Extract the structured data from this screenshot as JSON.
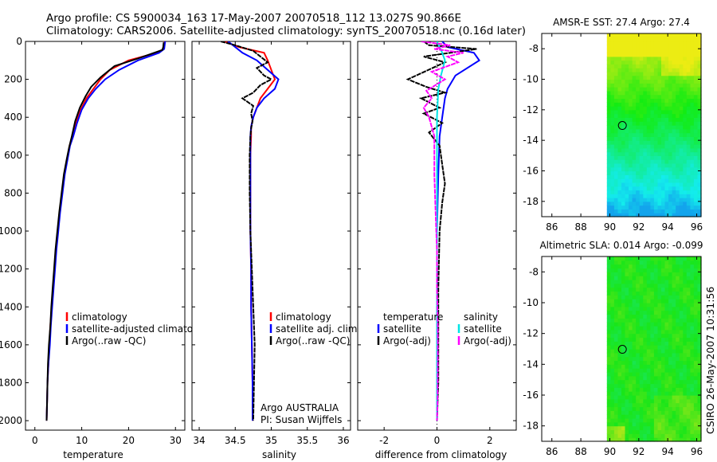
{
  "header": {
    "title_line1": "Argo profile: CS 5900034_163 17-May-2007 20070518_112 13.027S 90.866E",
    "title_line2": "Climatology: CARS2006. Satellite-adjusted climatology: synTS_20070518.nc (0.16d later)"
  },
  "footer": {
    "stamp": "CSIRO 26-May-2007 10:31:56"
  },
  "colors": {
    "climatology": "#ff0000",
    "satellite": "#0000ff",
    "argo": "#000000",
    "sat_diff_sal": "#00e5e5",
    "argo_diff_sal": "#ff00ff"
  },
  "chart_data": [
    {
      "id": "temperature",
      "type": "line",
      "xlabel": "temperature",
      "ylabel": "",
      "xlim": [
        -2,
        32
      ],
      "ylim": [
        0,
        2050
      ],
      "xticks": [
        "0",
        "10",
        "20",
        "30"
      ],
      "yticks": [
        "0",
        "200",
        "400",
        "600",
        "800",
        "1000",
        "1200",
        "1400",
        "1600",
        "1800",
        "2000"
      ],
      "legend_position": "bottom-right",
      "legend": [
        "climatology",
        "satellite-adjusted climatology",
        "Argo(..raw -QC)"
      ],
      "series": [
        {
          "name": "climatology",
          "color": "#ff0000",
          "points": [
            [
              27.7,
              0
            ],
            [
              27.5,
              40
            ],
            [
              26,
              60
            ],
            [
              20,
              100
            ],
            [
              16,
              150
            ],
            [
              14,
              200
            ],
            [
              12.5,
              250
            ],
            [
              11,
              300
            ],
            [
              9.8,
              360
            ],
            [
              8.8,
              430
            ],
            [
              8.0,
              500
            ],
            [
              7.4,
              550
            ],
            [
              6.9,
              620
            ],
            [
              6.3,
              700
            ],
            [
              5.8,
              800
            ],
            [
              5.3,
              900
            ],
            [
              4.9,
              1000
            ],
            [
              4.5,
              1100
            ],
            [
              4.2,
              1200
            ],
            [
              3.9,
              1300
            ],
            [
              3.6,
              1400
            ],
            [
              3.3,
              1500
            ],
            [
              3.1,
              1600
            ],
            [
              2.9,
              1700
            ],
            [
              2.7,
              1800
            ],
            [
              2.6,
              1900
            ],
            [
              2.5,
              2000
            ]
          ]
        },
        {
          "name": "satellite-adjusted climatology",
          "color": "#0000ff",
          "points": [
            [
              27.8,
              0
            ],
            [
              27.6,
              40
            ],
            [
              26.5,
              60
            ],
            [
              22,
              100
            ],
            [
              18,
              150
            ],
            [
              15,
              200
            ],
            [
              13,
              250
            ],
            [
              11.4,
              300
            ],
            [
              10.0,
              360
            ],
            [
              9.0,
              430
            ],
            [
              8.2,
              500
            ],
            [
              7.5,
              550
            ],
            [
              7.0,
              620
            ],
            [
              6.4,
              700
            ],
            [
              5.9,
              800
            ],
            [
              5.4,
              900
            ],
            [
              5.0,
              1000
            ],
            [
              4.6,
              1100
            ],
            [
              4.3,
              1200
            ],
            [
              4.0,
              1300
            ],
            [
              3.7,
              1400
            ],
            [
              3.4,
              1500
            ],
            [
              3.2,
              1600
            ],
            [
              2.9,
              1700
            ],
            [
              2.7,
              1800
            ],
            [
              2.6,
              1900
            ],
            [
              2.5,
              2000
            ]
          ]
        },
        {
          "name": "Argo(..raw -QC)",
          "color": "#000000",
          "points": [
            [
              27.5,
              5
            ],
            [
              27.4,
              30
            ],
            [
              27.2,
              45
            ],
            [
              22,
              90
            ],
            [
              17,
              130
            ],
            [
              14,
              190
            ],
            [
              12,
              240
            ],
            [
              10.8,
              290
            ],
            [
              9.6,
              350
            ],
            [
              8.6,
              420
            ],
            [
              7.9,
              500
            ],
            [
              7.3,
              560
            ],
            [
              6.8,
              620
            ],
            [
              6.2,
              700
            ],
            [
              5.7,
              800
            ],
            [
              5.2,
              900
            ],
            [
              4.8,
              1000
            ],
            [
              4.4,
              1100
            ],
            [
              4.1,
              1200
            ],
            [
              3.8,
              1300
            ],
            [
              3.5,
              1400
            ],
            [
              3.3,
              1500
            ],
            [
              3.0,
              1600
            ],
            [
              2.8,
              1700
            ],
            [
              2.7,
              1800
            ],
            [
              2.6,
              1900
            ],
            [
              2.5,
              2000
            ]
          ]
        }
      ]
    },
    {
      "id": "salinity",
      "type": "line",
      "xlabel": "salinity",
      "ylabel": "",
      "xlim": [
        33.9,
        36.1
      ],
      "ylim": [
        0,
        2050
      ],
      "xticks": [
        "34",
        "34.5",
        "35",
        "35.5",
        "36"
      ],
      "legend_position": "bottom-right",
      "legend": [
        "climatology",
        "satellite adj. clim.",
        "Argo(..raw -QC)"
      ],
      "annotation": [
        "Argo AUSTRALIA",
        "PI: Susan Wijffels"
      ],
      "series": [
        {
          "name": "climatology",
          "color": "#ff0000",
          "points": [
            [
              34.35,
              0
            ],
            [
              34.55,
              30
            ],
            [
              34.9,
              60
            ],
            [
              34.95,
              100
            ],
            [
              35.0,
              150
            ],
            [
              35.05,
              200
            ],
            [
              34.95,
              250
            ],
            [
              34.85,
              300
            ],
            [
              34.8,
              350
            ],
            [
              34.75,
              400
            ],
            [
              34.72,
              450
            ],
            [
              34.72,
              500
            ],
            [
              34.71,
              600
            ],
            [
              34.71,
              800
            ],
            [
              34.71,
              1000
            ],
            [
              34.72,
              1200
            ],
            [
              34.72,
              1400
            ],
            [
              34.73,
              1600
            ],
            [
              34.74,
              1800
            ],
            [
              34.74,
              2000
            ]
          ]
        },
        {
          "name": "satellite adj. clim.",
          "color": "#0000ff",
          "points": [
            [
              34.4,
              0
            ],
            [
              34.5,
              30
            ],
            [
              34.6,
              60
            ],
            [
              34.8,
              100
            ],
            [
              34.95,
              150
            ],
            [
              35.1,
              200
            ],
            [
              35.05,
              250
            ],
            [
              34.9,
              300
            ],
            [
              34.8,
              350
            ],
            [
              34.75,
              400
            ],
            [
              34.72,
              450
            ],
            [
              34.71,
              500
            ],
            [
              34.71,
              600
            ],
            [
              34.71,
              800
            ],
            [
              34.71,
              1000
            ],
            [
              34.72,
              1200
            ],
            [
              34.72,
              1400
            ],
            [
              34.73,
              1600
            ],
            [
              34.74,
              1800
            ],
            [
              34.74,
              2000
            ]
          ]
        },
        {
          "name": "Argo(..raw -QC)",
          "color": "#000000",
          "points": [
            [
              34.3,
              0
            ],
            [
              34.5,
              20
            ],
            [
              34.75,
              50
            ],
            [
              34.95,
              110
            ],
            [
              34.8,
              140
            ],
            [
              34.9,
              180
            ],
            [
              35.0,
              200
            ],
            [
              34.85,
              230
            ],
            [
              34.75,
              270
            ],
            [
              34.6,
              300
            ],
            [
              34.75,
              340
            ],
            [
              34.72,
              380
            ],
            [
              34.74,
              420
            ],
            [
              34.72,
              460
            ],
            [
              34.71,
              500
            ],
            [
              34.7,
              600
            ],
            [
              34.7,
              800
            ],
            [
              34.71,
              1000
            ],
            [
              34.73,
              1200
            ],
            [
              34.75,
              1400
            ],
            [
              34.77,
              1600
            ],
            [
              34.76,
              1800
            ],
            [
              34.75,
              2000
            ]
          ]
        }
      ]
    },
    {
      "id": "difference",
      "type": "line",
      "xlabel": "difference from climatology",
      "ylabel": "",
      "xlim": [
        -3,
        3
      ],
      "ylim": [
        0,
        2050
      ],
      "xticks": [
        "-2",
        "0",
        "2"
      ],
      "legend_position": "bottom-right",
      "legend_headers": [
        "temperature",
        "salinity"
      ],
      "legend": [
        "satellite",
        "Argo(-adj)",
        "satellite",
        "Argo(-adj)"
      ],
      "series": [
        {
          "name": "temperature satellite",
          "color": "#0000ff",
          "points": [
            [
              0.2,
              0
            ],
            [
              0.4,
              30
            ],
            [
              1.4,
              60
            ],
            [
              1.6,
              100
            ],
            [
              0.7,
              180
            ],
            [
              0.4,
              250
            ],
            [
              0.3,
              300
            ],
            [
              0.2,
              400
            ],
            [
              0.1,
              500
            ],
            [
              0.05,
              700
            ],
            [
              0.0,
              1000
            ],
            [
              0.0,
              1500
            ],
            [
              0.0,
              2000
            ]
          ]
        },
        {
          "name": "temperature Argo(-adj)",
          "color": "#000000",
          "points": [
            [
              -0.5,
              0
            ],
            [
              -0.3,
              20
            ],
            [
              1.5,
              40
            ],
            [
              -0.5,
              80
            ],
            [
              0.3,
              110
            ],
            [
              -1.1,
              200
            ],
            [
              -0.4,
              240
            ],
            [
              0.3,
              270
            ],
            [
              -0.6,
              300
            ],
            [
              0.1,
              350
            ],
            [
              -0.5,
              380
            ],
            [
              0.2,
              430
            ],
            [
              -0.3,
              480
            ],
            [
              0.1,
              550
            ],
            [
              0.2,
              650
            ],
            [
              0.3,
              750
            ],
            [
              0.2,
              850
            ],
            [
              0.1,
              1000
            ],
            [
              0.05,
              1300
            ],
            [
              0.05,
              1600
            ],
            [
              0.05,
              1800
            ],
            [
              0.0,
              2000
            ]
          ]
        },
        {
          "name": "salinity satellite",
          "color": "#00e5e5",
          "points": [
            [
              0.0,
              0
            ],
            [
              0.2,
              60
            ],
            [
              0.3,
              100
            ],
            [
              0.15,
              180
            ],
            [
              0.05,
              250
            ],
            [
              0.0,
              400
            ],
            [
              0.0,
              800
            ],
            [
              0.0,
              1200
            ],
            [
              0.0,
              1600
            ],
            [
              0.0,
              2000
            ]
          ]
        },
        {
          "name": "salinity Argo(-adj)",
          "color": "#ff00ff",
          "points": [
            [
              -0.6,
              0
            ],
            [
              0.5,
              20
            ],
            [
              -0.1,
              40
            ],
            [
              1.0,
              60
            ],
            [
              0.4,
              80
            ],
            [
              0.8,
              110
            ],
            [
              -0.2,
              160
            ],
            [
              0.3,
              200
            ],
            [
              -0.4,
              260
            ],
            [
              -0.2,
              300
            ],
            [
              -0.5,
              350
            ],
            [
              -0.3,
              400
            ],
            [
              -0.1,
              500
            ],
            [
              -0.1,
              700
            ],
            [
              -0.05,
              900
            ],
            [
              0.0,
              1100
            ],
            [
              0.0,
              1300
            ],
            [
              0.03,
              1500
            ],
            [
              0.03,
              1700
            ],
            [
              0.02,
              1900
            ],
            [
              0.0,
              2000
            ]
          ]
        }
      ]
    },
    {
      "id": "sst_map",
      "type": "heatmap",
      "title": "AMSR-E SST: 27.4  Argo: 27.4",
      "xlim": [
        85.3,
        96.3
      ],
      "ylim": [
        -19.0,
        -7.0
      ],
      "xticks": [
        "86",
        "88",
        "90",
        "92",
        "94",
        "96"
      ],
      "yticks": [
        "-8",
        "-10",
        "-12",
        "-14",
        "-16",
        "-18"
      ],
      "data_lon_start": 89.8,
      "argo_lon": 90.866,
      "argo_lat": -13.027
    },
    {
      "id": "sla_map",
      "type": "heatmap",
      "title": "Altimetric SLA: 0.014  Argo: -0.099",
      "xlim": [
        85.3,
        96.3
      ],
      "ylim": [
        -19.0,
        -7.0
      ],
      "xticks": [
        "86",
        "88",
        "90",
        "92",
        "94",
        "96"
      ],
      "yticks": [
        "-8",
        "-10",
        "-12",
        "-14",
        "-16",
        "-18"
      ],
      "data_lon_start": 89.8,
      "argo_lon": 90.866,
      "argo_lat": -13.027
    }
  ]
}
